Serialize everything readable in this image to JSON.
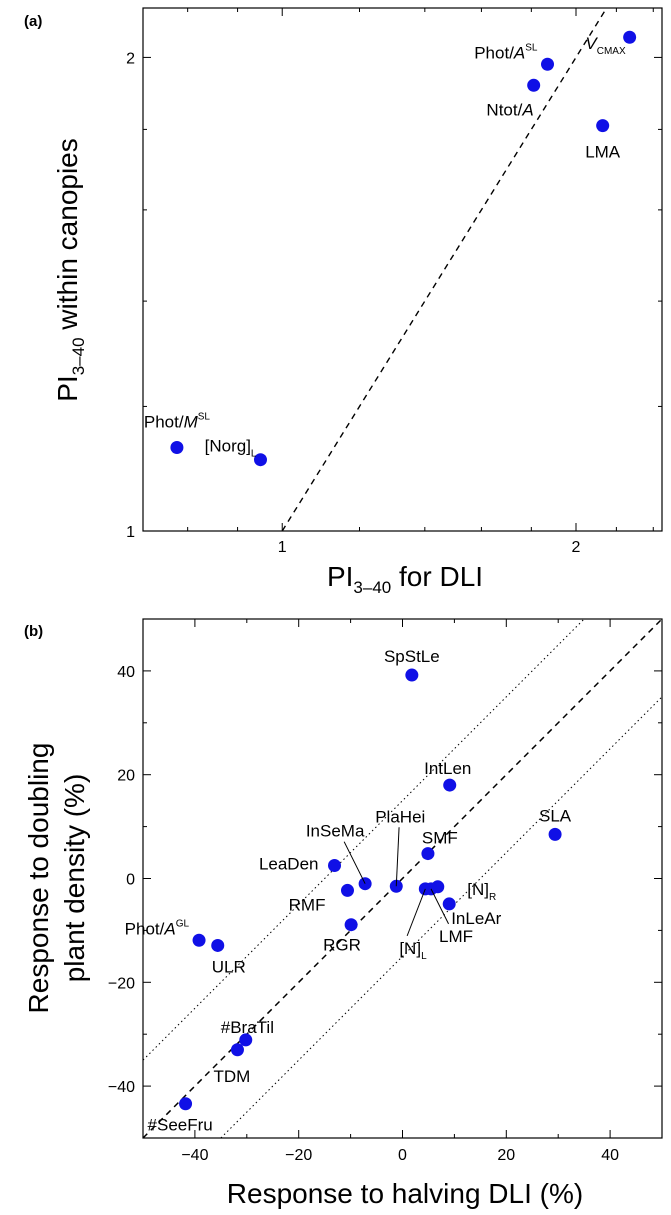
{
  "chart_data": [
    {
      "panel": "(a)",
      "type": "scatter",
      "scale": "log",
      "xlabel": {
        "main": "PI",
        "sub": "3–40",
        "rest": " for DLI"
      },
      "ylabel": {
        "main": "PI",
        "sub": "3–40",
        "rest": " within canopies"
      },
      "xlim": [
        0.72,
        2.45
      ],
      "ylim": [
        1.0,
        2.15
      ],
      "xticks": [
        {
          "value": 1,
          "label": "1"
        },
        {
          "value": 2,
          "label": "2"
        }
      ],
      "yticks": [
        {
          "value": 1,
          "label": "1"
        },
        {
          "value": 2,
          "label": "2"
        }
      ],
      "reference_line": "1:1 dashed",
      "marker_color": "#1010e6",
      "points": [
        {
          "label": "Phot/",
          "label_it": "A",
          "label_sup": "SL",
          "x": 1.87,
          "y": 1.98
        },
        {
          "label": "",
          "label_it": "V",
          "label_sub": "CMAX",
          "x": 2.27,
          "y": 2.06
        },
        {
          "label": "Ntot/",
          "label_it": "A",
          "x": 1.81,
          "y": 1.92
        },
        {
          "label": "LMA",
          "x": 2.13,
          "y": 1.81
        },
        {
          "label": "Phot/",
          "label_it": "M",
          "label_sup": "SL",
          "x": 0.78,
          "y": 1.13
        },
        {
          "label": "[Norg]",
          "label_sub": "L",
          "x": 0.95,
          "y": 1.11
        }
      ]
    },
    {
      "panel": "(b)",
      "type": "scatter",
      "xlabel": "Response to halving DLI (%)",
      "ylabel_lines": [
        "Response to doubling",
        "plant density (%)"
      ],
      "xlim": [
        -50,
        50
      ],
      "ylim": [
        -50,
        50
      ],
      "xticks": [
        {
          "value": -40,
          "label": "−40"
        },
        {
          "value": -20,
          "label": "−20"
        },
        {
          "value": 0,
          "label": "0"
        },
        {
          "value": 20,
          "label": "20"
        },
        {
          "value": 40,
          "label": "40"
        }
      ],
      "yticks": [
        {
          "value": -40,
          "label": "−40"
        },
        {
          "value": -20,
          "label": "−20"
        },
        {
          "value": 0,
          "label": "0"
        },
        {
          "value": 20,
          "label": "20"
        },
        {
          "value": 40,
          "label": "40"
        }
      ],
      "reference_line": "1:1 dashed, ±15 dotted",
      "marker_color": "#1010e6",
      "points": [
        {
          "label": "SpStLe",
          "x": 1.8,
          "y": 39.2
        },
        {
          "label": "IntLen",
          "x": 9.1,
          "y": 18.0
        },
        {
          "label": "SLA",
          "x": 29.4,
          "y": 8.5
        },
        {
          "label": "SMF",
          "x": 4.9,
          "y": 4.8
        },
        {
          "label": "PlaHei",
          "x": -1.2,
          "y": -1.5
        },
        {
          "label": "InSeMa",
          "x": -7.2,
          "y": -1.0
        },
        {
          "label": "LeaDen",
          "x": -13.1,
          "y": 2.5
        },
        {
          "label": "RMF",
          "x": -10.6,
          "y": -2.3
        },
        {
          "label": "RGR",
          "x": -9.9,
          "y": -8.9
        },
        {
          "label": "[N]",
          "label_sub": "R",
          "x": 6.8,
          "y": -1.6
        },
        {
          "label": "[N]",
          "label_sub": "L",
          "x": 4.4,
          "y": -2.0
        },
        {
          "label": "LMF",
          "x": 5.5,
          "y": -2.0
        },
        {
          "label": "InLeAr",
          "x": 9.0,
          "y": -4.9
        },
        {
          "label": "Phot/",
          "label_it": "A",
          "label_sup": "GL",
          "x": -39.2,
          "y": -11.9
        },
        {
          "label": "ULR",
          "x": -35.6,
          "y": -12.9
        },
        {
          "label": "#BraTil",
          "x": -30.2,
          "y": -31.1
        },
        {
          "label": "TDM",
          "x": -31.8,
          "y": -33.0
        },
        {
          "label": "#SeeFru",
          "x": -41.8,
          "y": -43.4
        }
      ]
    }
  ]
}
